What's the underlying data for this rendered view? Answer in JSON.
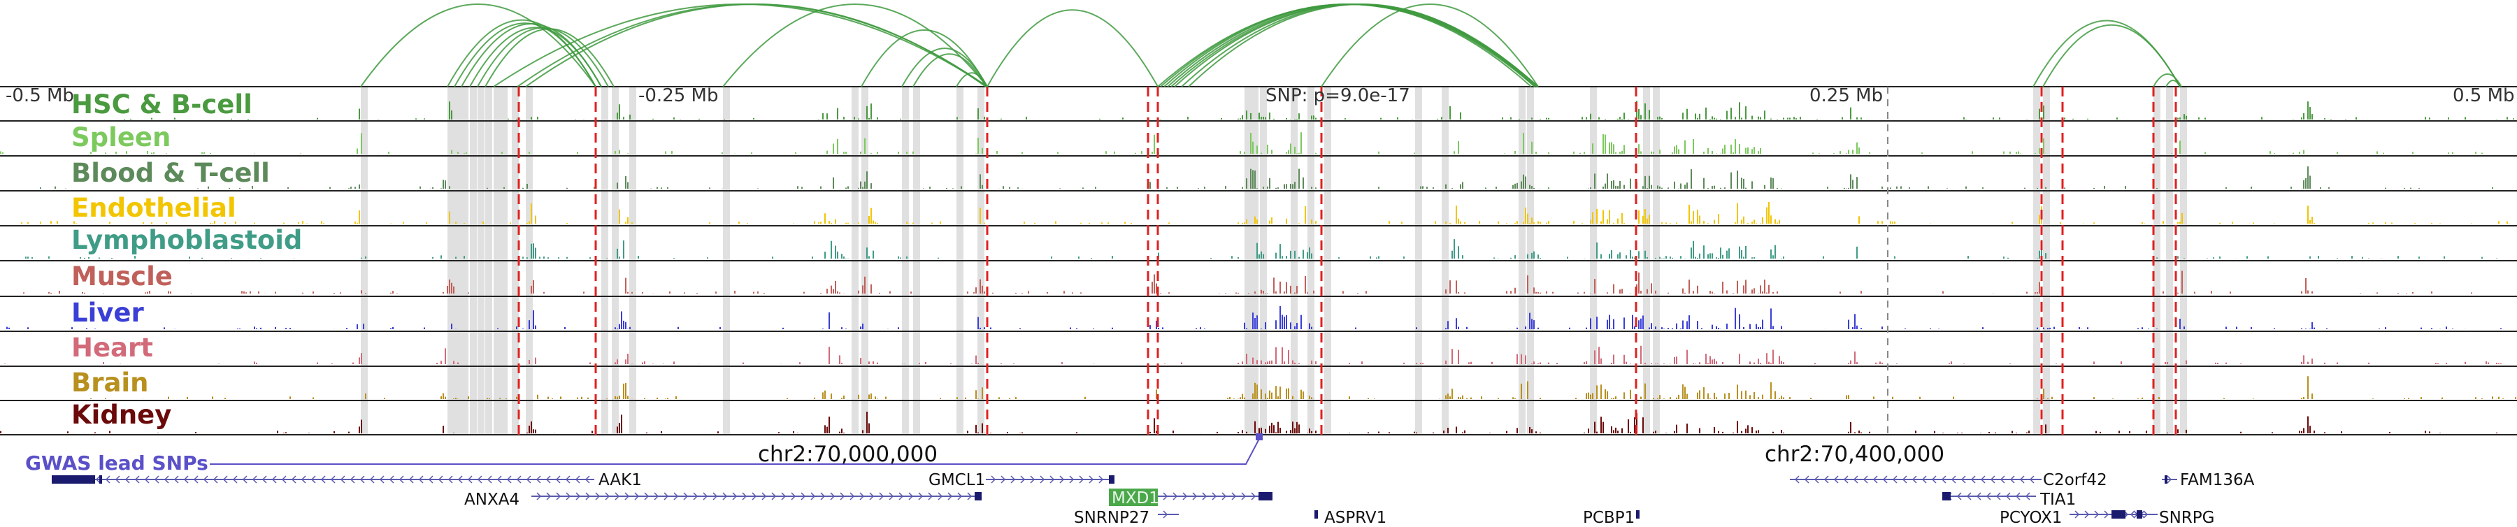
{
  "scale": {
    "left_label": "-0.5 Mb",
    "mid_left_label": "-0.25 Mb",
    "snp_label": "SNP: p=9.0e-17",
    "mid_right_label": "0.25 Mb",
    "right_label": "0.5 Mb"
  },
  "tracks": [
    {
      "name": "HSC & B-cell",
      "color": "#4a9a3f"
    },
    {
      "name": "Spleen",
      "color": "#7cc95e"
    },
    {
      "name": "Blood & T-cell",
      "color": "#5d8a5a"
    },
    {
      "name": "Endothelial",
      "color": "#f2c500"
    },
    {
      "name": "Lymphoblastoid",
      "color": "#3f9c86"
    },
    {
      "name": "Muscle",
      "color": "#c0605a"
    },
    {
      "name": "Liver",
      "color": "#3a3fd6"
    },
    {
      "name": "Heart",
      "color": "#d26a7a"
    },
    {
      "name": "Brain",
      "color": "#b8901e"
    },
    {
      "name": "Kidney",
      "color": "#6b0a0a"
    }
  ],
  "gwas": {
    "label": "GWAS lead SNPs",
    "color": "#5a50c8"
  },
  "coordinates": {
    "left": "chr2:70,000,000",
    "right": "chr2:70,400,000"
  },
  "genes": {
    "aak1": "AAK1",
    "anxa4": "ANXA4",
    "gmcl1": "GMCL1",
    "mxd1": "MXD1",
    "snrnp27": "SNRNP27",
    "asprv1": "ASPRV1",
    "pcbp1": "PCBP1",
    "c2orf42": "C2orf42",
    "tia1": "TIA1",
    "fam136a": "FAM136A",
    "pcyox1": "PCYOX1",
    "snrpg": "SNRPG"
  },
  "colors": {
    "arc": "#3f9a3f",
    "highlight_red": "#e02020",
    "gray_band": "#cccccc",
    "gene_body": "#1a1a6e",
    "gene_line": "#5a5ab0",
    "mxd1_box": "#4aa84a"
  }
}
